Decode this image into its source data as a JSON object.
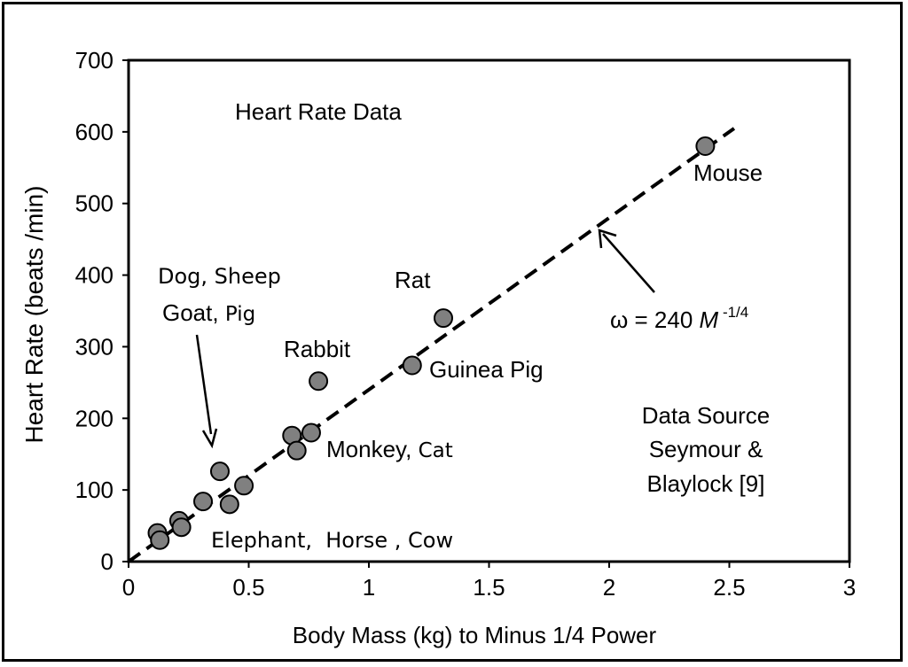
{
  "chart_data": {
    "type": "scatter",
    "title": "Heart Rate Data",
    "xlabel": "Body Mass (kg) to Minus 1/4 Power",
    "ylabel": "Heart Rate (beats /min)",
    "xlim": [
      0,
      3
    ],
    "ylim": [
      0,
      700
    ],
    "x_ticks": [
      "0",
      "0.5",
      "1",
      "1.5",
      "2",
      "2.5",
      "3"
    ],
    "y_ticks": [
      "0",
      "100",
      "200",
      "300",
      "400",
      "500",
      "600",
      "700"
    ],
    "grid": false,
    "point_color": "#808080",
    "points": [
      {
        "x": 0.12,
        "y": 40
      },
      {
        "x": 0.13,
        "y": 30
      },
      {
        "x": 0.21,
        "y": 57
      },
      {
        "x": 0.22,
        "y": 48
      },
      {
        "x": 0.31,
        "y": 84
      },
      {
        "x": 0.38,
        "y": 126
      },
      {
        "x": 0.42,
        "y": 80
      },
      {
        "x": 0.48,
        "y": 106
      },
      {
        "x": 0.68,
        "y": 176
      },
      {
        "x": 0.7,
        "y": 155
      },
      {
        "x": 0.76,
        "y": 180
      },
      {
        "x": 0.79,
        "y": 252
      },
      {
        "x": 1.18,
        "y": 274
      },
      {
        "x": 1.31,
        "y": 340
      },
      {
        "x": 2.4,
        "y": 580
      }
    ],
    "fit_line": {
      "equation": "ω = 240 M -1/4",
      "slope": 240,
      "x_range": [
        0,
        2.52
      ]
    },
    "labels": {
      "mouse": "Mouse",
      "rat": "Rat",
      "guinea_pig": "Guinea Pig",
      "rabbit": "Rabbit",
      "monkey": "Monkey,",
      "cat": "Cat",
      "dog_sheep": "Dog, Sheep",
      "goat": "Goat,",
      "pig": "Pig",
      "elephant_horse_cow": "Elephant,  Horse , Cow"
    },
    "equation": {
      "base": "ω = 240 ",
      "var": "M",
      "exp": " -1/4"
    },
    "source": [
      "Data Source",
      "Seymour &",
      "Blaylock [9]"
    ]
  }
}
